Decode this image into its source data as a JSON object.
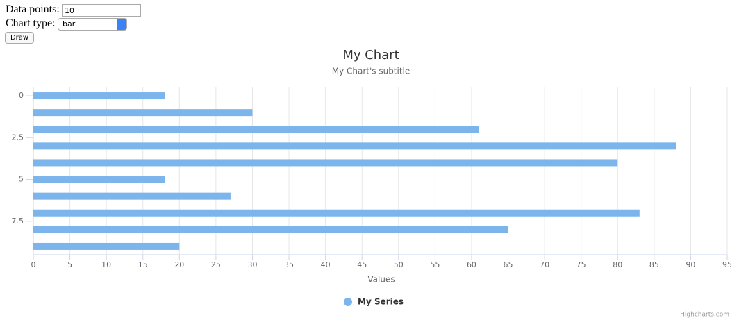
{
  "form": {
    "data_points_label": "Data points:",
    "data_points_value": "10",
    "chart_type_label": "Chart type:",
    "chart_type_value": "bar",
    "button": "Draw"
  },
  "chart_data": {
    "type": "bar",
    "title": "My Chart",
    "subtitle": "My Chart's subtitle",
    "x": [
      0,
      1,
      2,
      3,
      4,
      5,
      6,
      7,
      8,
      9
    ],
    "xlim": [
      -0.5,
      9.5
    ],
    "xticks": [
      0,
      2.5,
      5,
      7.5
    ],
    "series": [
      {
        "name": "My Series",
        "color": "#7cb5ec",
        "values": [
          18,
          30,
          61,
          88,
          80,
          18,
          27,
          83,
          65,
          20
        ]
      }
    ],
    "ylim": [
      0,
      95
    ],
    "yticks": [
      0,
      5,
      10,
      15,
      20,
      25,
      30,
      35,
      40,
      45,
      50,
      55,
      60,
      65,
      70,
      75,
      80,
      85,
      90,
      95
    ],
    "y_axis_label": "Values",
    "grid": true,
    "legend": "bottom",
    "credits": "Highcharts.com"
  }
}
